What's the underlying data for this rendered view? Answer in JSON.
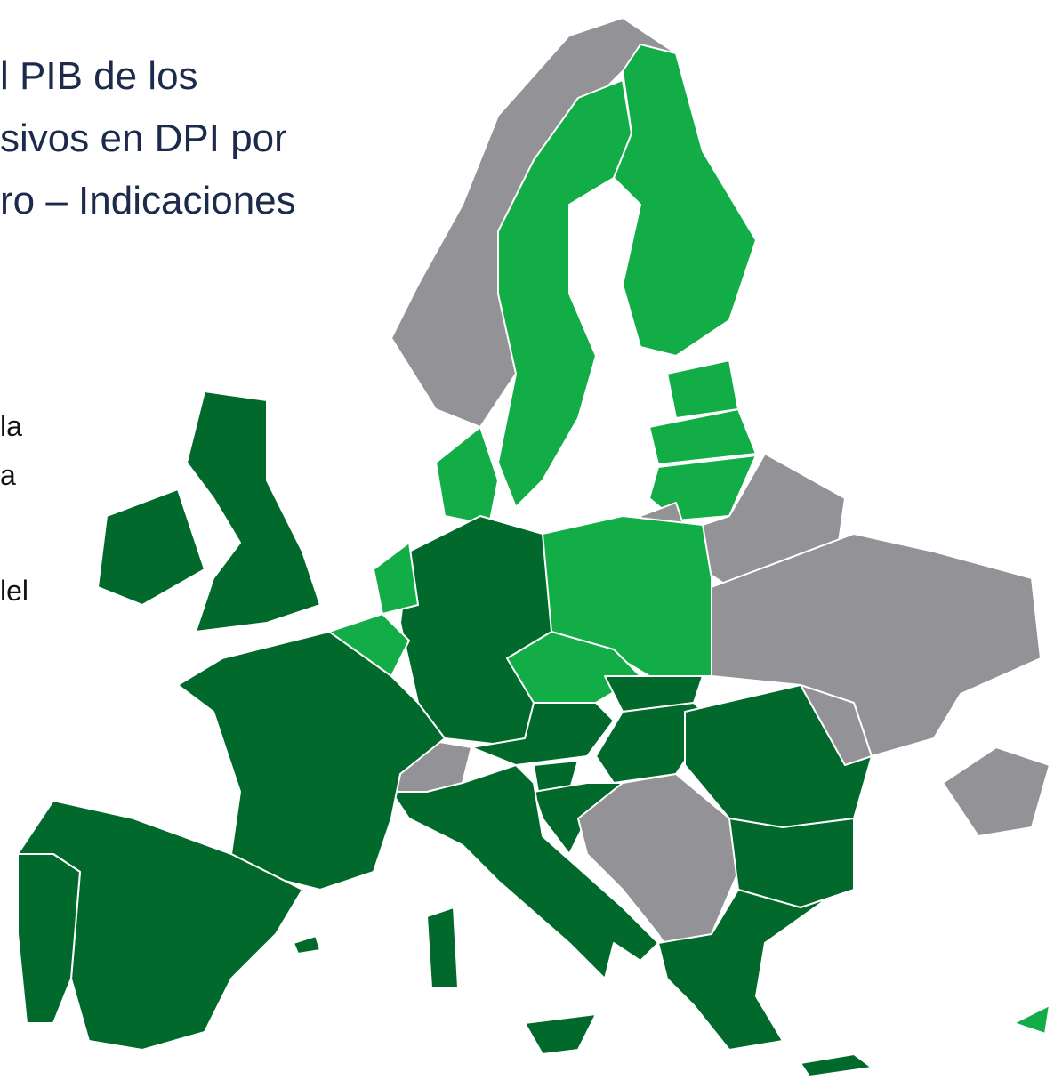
{
  "title": {
    "lines": [
      "l PIB de los",
      "sivos en DPI por",
      "ro – Indicaciones"
    ]
  },
  "text": {
    "lines": [
      "la",
      "a",
      "lel"
    ]
  }
}
